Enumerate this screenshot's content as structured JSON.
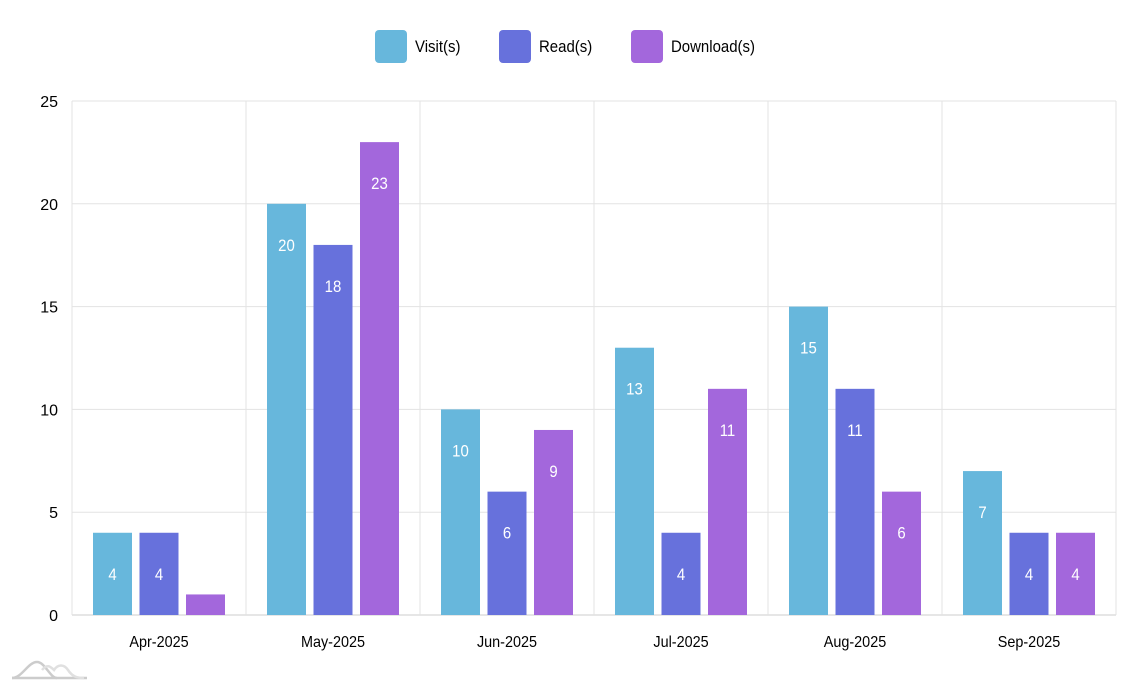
{
  "chart_data": {
    "type": "bar",
    "title": "",
    "xlabel": "",
    "ylabel": "",
    "ylim": [
      0,
      25
    ],
    "yticks": [
      0,
      5,
      10,
      15,
      20,
      25
    ],
    "grid": true,
    "legend_position": "top-center",
    "categories": [
      "Apr-2025",
      "May-2025",
      "Jun-2025",
      "Jul-2025",
      "Aug-2025",
      "Sep-2025"
    ],
    "series": [
      {
        "name": "Visit(s)",
        "color": "#67b7dc",
        "values": [
          4,
          20,
          10,
          13,
          15,
          7
        ]
      },
      {
        "name": "Read(s)",
        "color": "#6771dc",
        "values": [
          4,
          18,
          6,
          4,
          11,
          4
        ]
      },
      {
        "name": "Download(s)",
        "color": "#a367dc",
        "values": [
          1,
          23,
          9,
          11,
          6,
          4
        ]
      }
    ]
  },
  "logo_icon": "amcharts-logo-icon"
}
